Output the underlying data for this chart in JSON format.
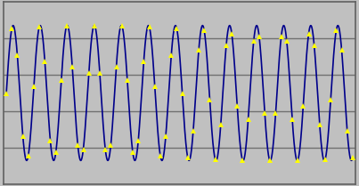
{
  "nwindow": 13,
  "nrecord": 64,
  "line_color": "#00008B",
  "marker_color": "#FFFF00",
  "marker_style": "^",
  "marker_size": 4,
  "line_width": 1.2,
  "bg_color": "#C0C0C0",
  "border_color": "#606060",
  "grid_color": "#707070",
  "grid_linewidth": 1.0,
  "ylim": [
    -1.35,
    1.35
  ],
  "figsize": [
    4.03,
    2.09
  ],
  "dpi": 100
}
